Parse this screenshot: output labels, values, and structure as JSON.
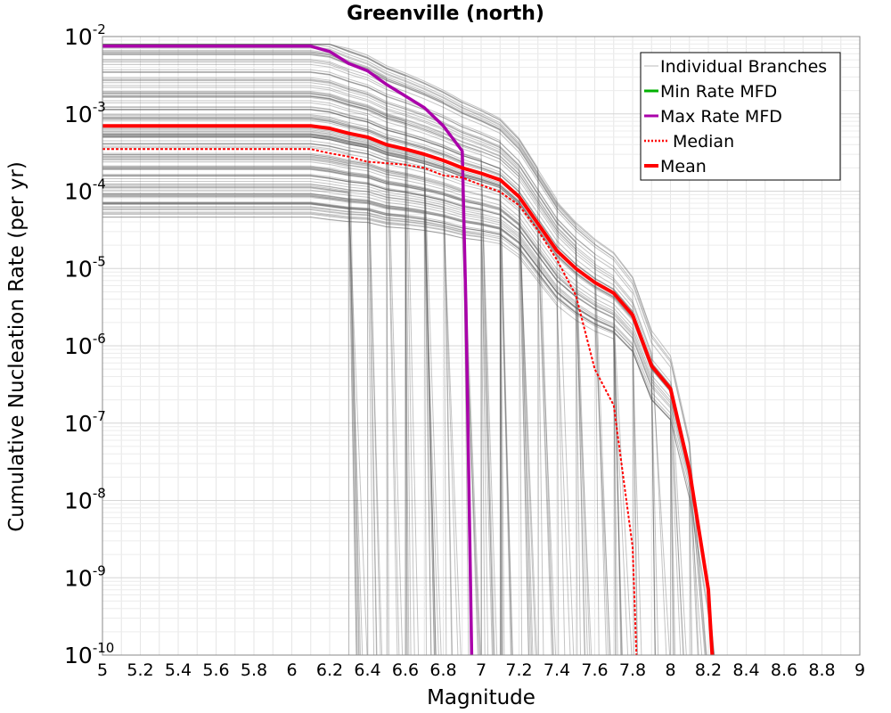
{
  "chart_data": {
    "type": "line",
    "title": "Greenville (north)",
    "xlabel": "Magnitude",
    "ylabel": "Cumulative Nucleation Rate (per yr)",
    "xlim": [
      5,
      9
    ],
    "ylim": [
      1e-10,
      0.01
    ],
    "y_scale": "log",
    "grid": true,
    "legend_position": "top-right",
    "x_ticks": [
      5,
      5.2,
      5.4,
      5.6,
      5.8,
      6,
      6.2,
      6.4,
      6.6,
      6.8,
      7,
      7.2,
      7.4,
      7.6,
      7.8,
      8,
      8.2,
      8.4,
      8.6,
      8.8,
      9
    ],
    "x_tick_labels": [
      "5",
      "5.2",
      "5.4",
      "5.6",
      "5.8",
      "6",
      "6.2",
      "6.4",
      "6.6",
      "6.8",
      "7",
      "7.2",
      "7.4",
      "7.6",
      "7.8",
      "8",
      "8.2",
      "8.4",
      "8.6",
      "8.8",
      "9"
    ],
    "y_ticks": [
      {
        "value": 0.01,
        "base": "10",
        "exp": "-2"
      },
      {
        "value": 0.001,
        "base": "10",
        "exp": "-3"
      },
      {
        "value": 0.0001,
        "base": "10",
        "exp": "-4"
      },
      {
        "value": 1e-05,
        "base": "10",
        "exp": "-5"
      },
      {
        "value": 1e-06,
        "base": "10",
        "exp": "-6"
      },
      {
        "value": 1e-07,
        "base": "10",
        "exp": "-7"
      },
      {
        "value": 1e-08,
        "base": "10",
        "exp": "-8"
      },
      {
        "value": 1e-09,
        "base": "10",
        "exp": "-9"
      },
      {
        "value": 1e-10,
        "base": "10",
        "exp": "-10"
      }
    ],
    "legend": [
      {
        "label": "Individual Branches",
        "color": "#c8c8c8",
        "style": "thin"
      },
      {
        "label": "Min Rate MFD",
        "color": "#00b000",
        "style": "solid"
      },
      {
        "label": "Max Rate MFD",
        "color": "#aa00aa",
        "style": "solid"
      },
      {
        "label": "Median",
        "color": "#ff0000",
        "style": "dotted"
      },
      {
        "label": "Mean",
        "color": "#ff0000",
        "style": "thick"
      }
    ],
    "branch_color": "#555555",
    "series": [
      {
        "name": "Max Rate MFD",
        "color": "#aa00aa",
        "width": 3.5,
        "dash": "",
        "x": [
          5,
          6.1,
          6.2,
          6.3,
          6.4,
          6.5,
          6.6,
          6.7,
          6.8,
          6.9,
          6.92,
          6.95
        ],
        "y": [
          0.0075,
          0.0075,
          0.0064,
          0.0045,
          0.0036,
          0.0024,
          0.0017,
          0.0012,
          0.0007,
          0.00033,
          3e-06,
          1e-10
        ]
      },
      {
        "name": "Mean",
        "color": "#ff0000",
        "width": 4,
        "dash": "",
        "x": [
          5,
          6.1,
          6.2,
          6.3,
          6.4,
          6.5,
          6.6,
          6.7,
          6.8,
          6.9,
          7.0,
          7.1,
          7.2,
          7.3,
          7.4,
          7.5,
          7.6,
          7.7,
          7.8,
          7.9,
          8.0,
          8.1,
          8.2,
          8.22
        ],
        "y": [
          0.0007,
          0.0007,
          0.00065,
          0.00056,
          0.0005,
          0.0004,
          0.00035,
          0.0003,
          0.00025,
          0.0002,
          0.00017,
          0.00014,
          8.5e-05,
          3.8e-05,
          1.7e-05,
          1e-05,
          6.6e-06,
          4.8e-06,
          2.5e-06,
          5.5e-07,
          2.8e-07,
          2.5e-08,
          7e-10,
          1e-10
        ]
      },
      {
        "name": "Median",
        "color": "#ff0000",
        "width": 2,
        "dash": "3,2",
        "x": [
          5,
          6.1,
          6.2,
          6.3,
          6.4,
          6.5,
          6.6,
          6.7,
          6.8,
          6.9,
          7.0,
          7.1,
          7.2,
          7.3,
          7.4,
          7.5,
          7.6,
          7.7,
          7.8,
          7.82
        ],
        "y": [
          0.00035,
          0.00035,
          0.00031,
          0.00028,
          0.00024,
          0.00023,
          0.00022,
          0.0002,
          0.00016,
          0.00015,
          0.00012,
          9.8e-05,
          6.6e-05,
          3.1e-05,
          1.3e-05,
          4.5e-06,
          5e-07,
          1.7e-07,
          2.5e-09,
          1e-10
        ]
      }
    ]
  }
}
